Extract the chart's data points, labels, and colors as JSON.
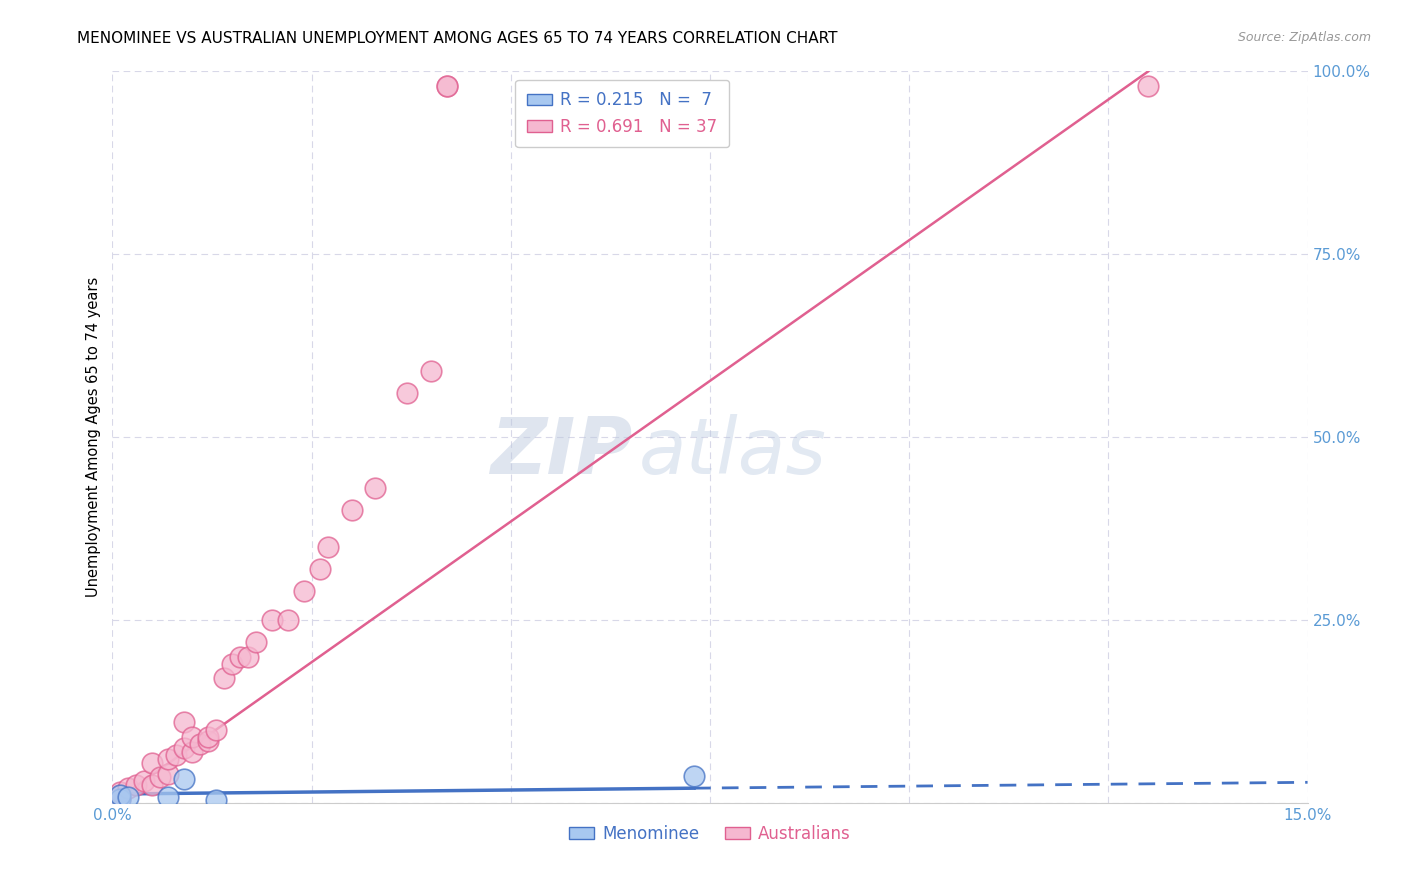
{
  "title": "MENOMINEE VS AUSTRALIAN UNEMPLOYMENT AMONG AGES 65 TO 74 YEARS CORRELATION CHART",
  "source": "Source: ZipAtlas.com",
  "ylabel": "Unemployment Among Ages 65 to 74 years",
  "xlim": [
    0.0,
    0.15
  ],
  "ylim": [
    0.0,
    1.0
  ],
  "xticks": [
    0.0,
    0.025,
    0.05,
    0.075,
    0.1,
    0.125,
    0.15
  ],
  "yticks_right": [
    0.0,
    0.25,
    0.5,
    0.75,
    1.0
  ],
  "yticklabels_right": [
    "",
    "25.0%",
    "50.0%",
    "75.0%",
    "100.0%"
  ],
  "menominee_color": "#a8c8f0",
  "australians_color": "#f5b8d0",
  "menominee_edge_color": "#4472C4",
  "australians_edge_color": "#e06090",
  "menominee_line_color": "#4472C4",
  "australians_line_color": "#e06090",
  "legend_R_menominee": "0.215",
  "legend_N_menominee": "7",
  "legend_R_australians": "0.691",
  "legend_N_australians": "37",
  "watermark_zip": "ZIP",
  "watermark_atlas": "atlas",
  "background_color": "#ffffff",
  "grid_color": "#d8d8e8",
  "menominee_points_x": [
    0.001,
    0.001,
    0.002,
    0.007,
    0.009,
    0.013,
    0.073
  ],
  "menominee_points_y": [
    0.005,
    0.01,
    0.008,
    0.008,
    0.032,
    0.004,
    0.037
  ],
  "australians_points_x": [
    0.001,
    0.001,
    0.001,
    0.002,
    0.003,
    0.004,
    0.005,
    0.005,
    0.006,
    0.007,
    0.007,
    0.008,
    0.009,
    0.009,
    0.01,
    0.01,
    0.011,
    0.012,
    0.012,
    0.013,
    0.014,
    0.015,
    0.016,
    0.017,
    0.018,
    0.02,
    0.022,
    0.024,
    0.026,
    0.027,
    0.03,
    0.033,
    0.037,
    0.04,
    0.042,
    0.042,
    0.13
  ],
  "australians_points_y": [
    0.005,
    0.01,
    0.015,
    0.02,
    0.025,
    0.03,
    0.025,
    0.055,
    0.035,
    0.04,
    0.06,
    0.065,
    0.075,
    0.11,
    0.07,
    0.09,
    0.08,
    0.085,
    0.09,
    0.1,
    0.17,
    0.19,
    0.2,
    0.2,
    0.22,
    0.25,
    0.25,
    0.29,
    0.32,
    0.35,
    0.4,
    0.43,
    0.56,
    0.59,
    0.98,
    0.98,
    0.98
  ],
  "aus_trend_x0": 0.0,
  "aus_trend_y0": 0.0,
  "aus_trend_x1": 0.13,
  "aus_trend_y1": 1.0,
  "men_trend_solid_x0": 0.0,
  "men_trend_solid_y0": 0.012,
  "men_trend_solid_x1": 0.073,
  "men_trend_solid_y1": 0.02,
  "men_trend_dashed_x0": 0.073,
  "men_trend_dashed_y0": 0.02,
  "men_trend_dashed_x1": 0.15,
  "men_trend_dashed_y1": 0.028
}
